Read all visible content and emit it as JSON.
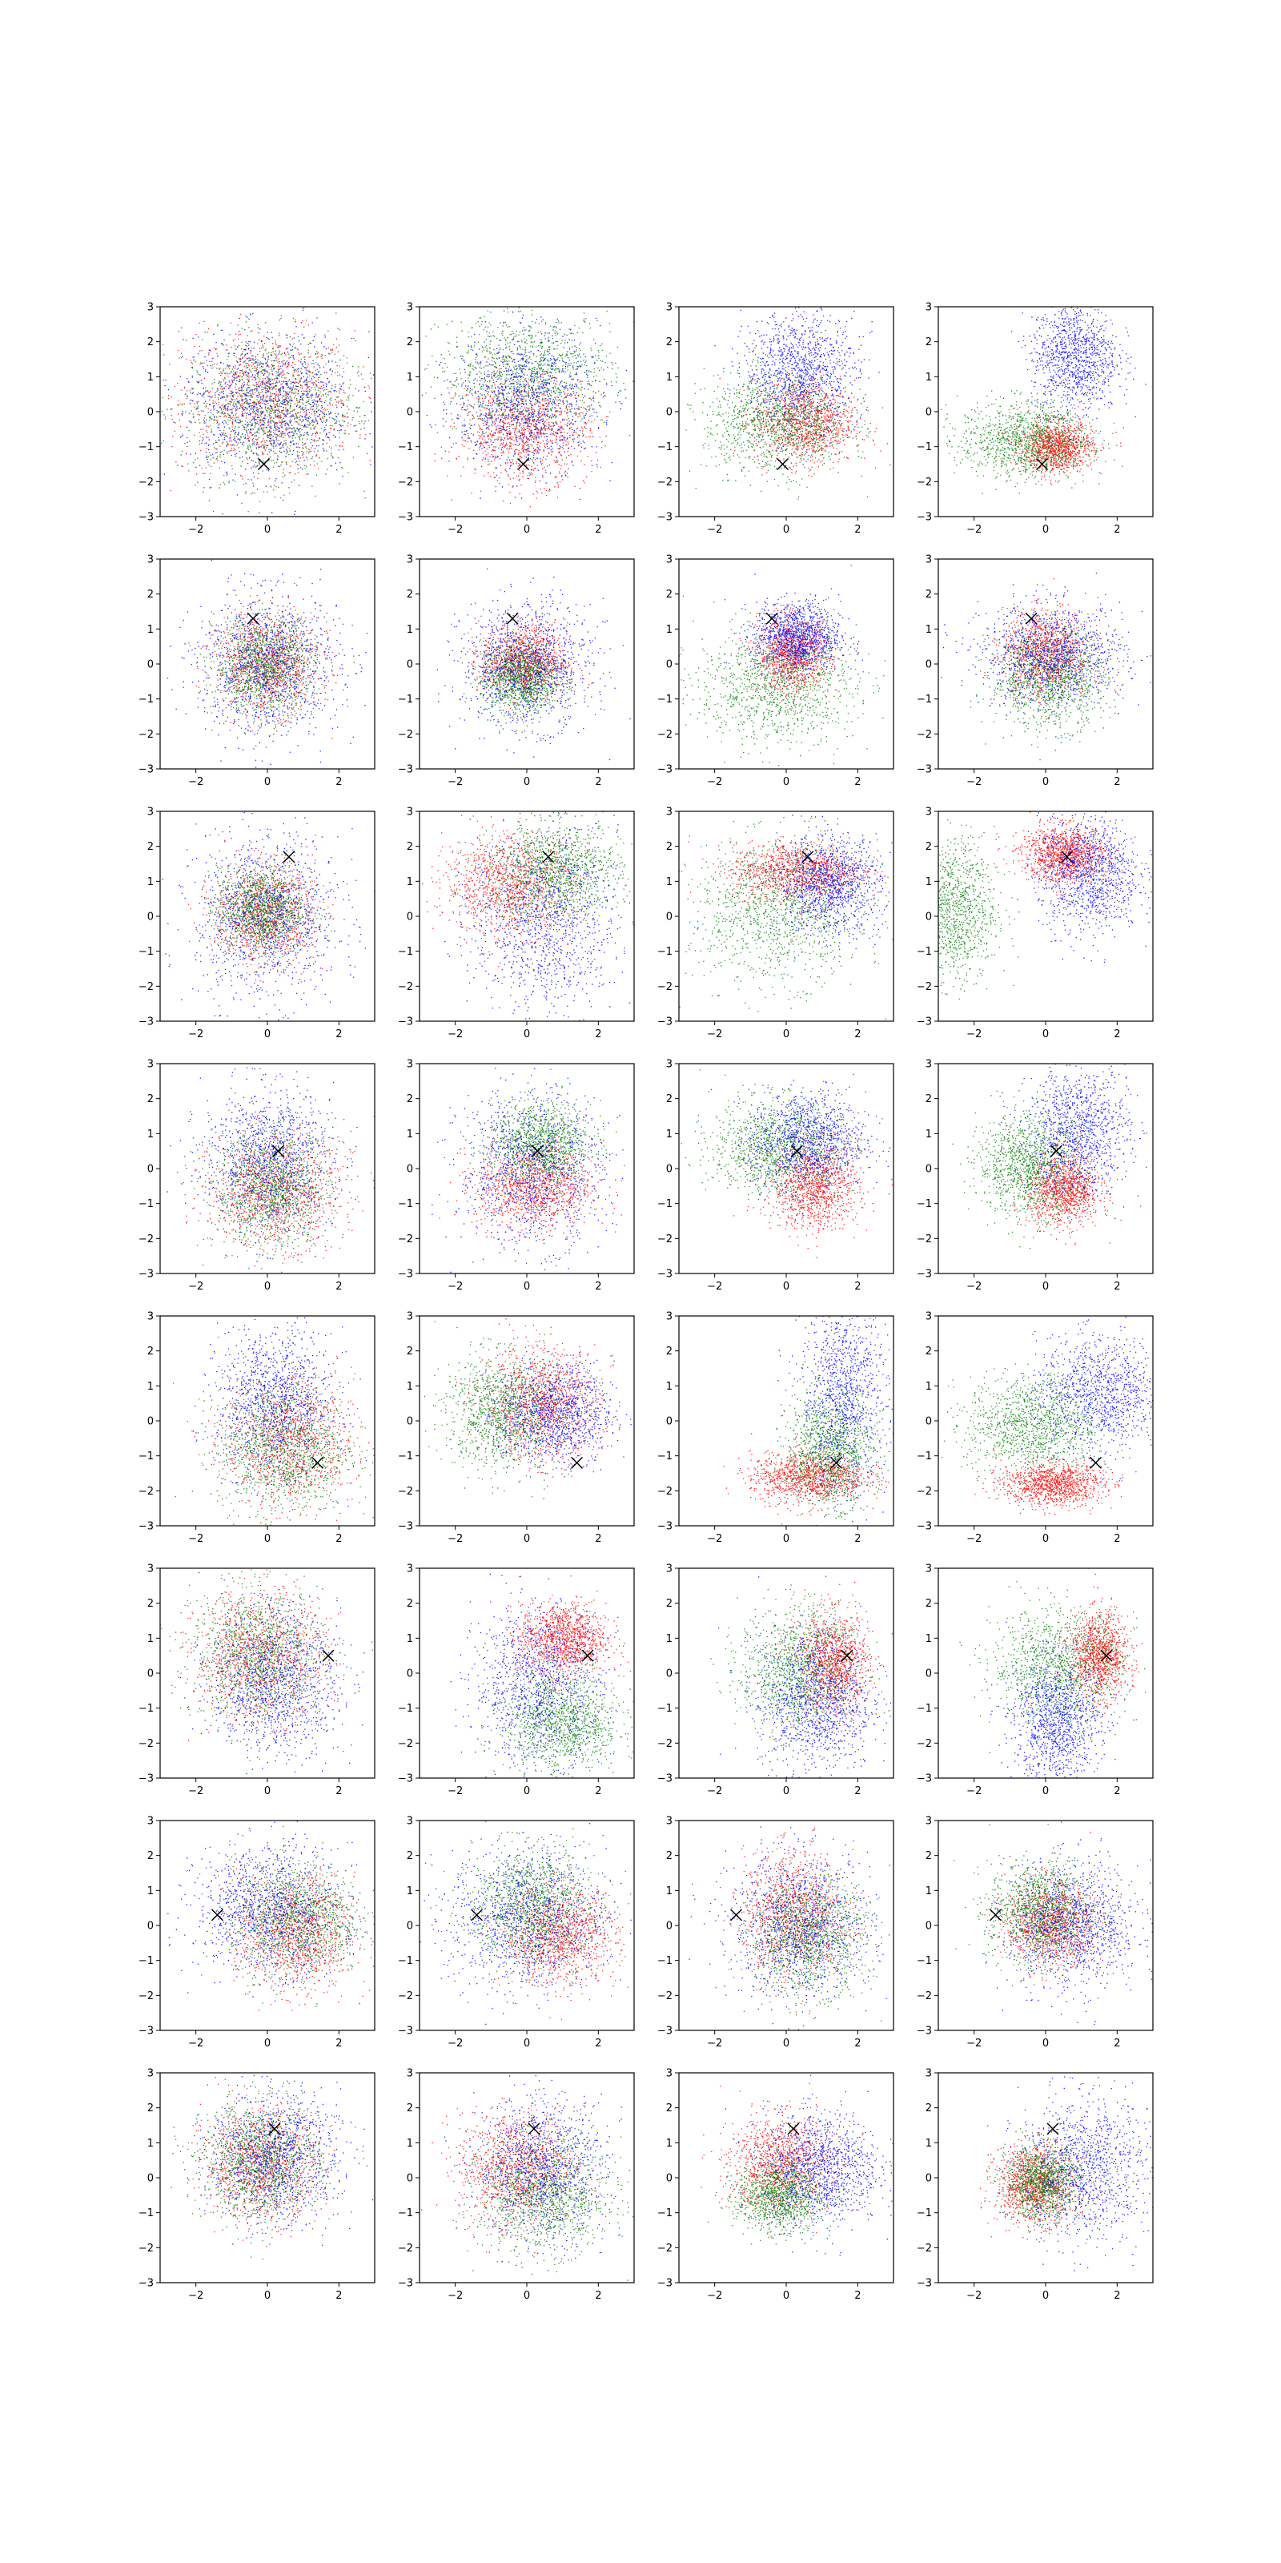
{
  "figure": {
    "rows": 8,
    "cols": 4,
    "background": "#ffffff"
  },
  "axes_common": {
    "xlim": [
      -3,
      3
    ],
    "ylim": [
      -3,
      3
    ],
    "xticks": [
      -2,
      0,
      2
    ],
    "yticks": [
      -3,
      -2,
      -1,
      0,
      1,
      2,
      3
    ],
    "xtick_labels": [
      "−2",
      "0",
      "2"
    ],
    "ytick_labels": [
      "−3",
      "−2",
      "−1",
      "0",
      "1",
      "2",
      "3"
    ],
    "grid": false,
    "legend": "none",
    "marker_color": "#000000",
    "marker_symbol": "x"
  },
  "series_colors": {
    "red": "#ff0000",
    "green": "#008000",
    "blue": "#0000ff"
  },
  "chart_data": {
    "type": "scatter",
    "title": "",
    "xlabel": "",
    "ylabel": "",
    "rows": [
      {
        "marker": [
          -0.1,
          -1.5
        ],
        "panels": [
          [
            [
              0.0,
              0.3,
              1.2,
              1.0
            ],
            [
              0.0,
              0.1,
              1.2,
              1.0
            ],
            [
              0.0,
              0.2,
              1.2,
              1.0
            ]
          ],
          [
            [
              -0.1,
              -0.5,
              0.9,
              0.75
            ],
            [
              0.0,
              1.1,
              1.2,
              0.85
            ],
            [
              0.0,
              0.3,
              1.0,
              1.0
            ]
          ],
          [
            [
              0.5,
              -0.3,
              0.7,
              0.6
            ],
            [
              -0.3,
              -0.3,
              1.0,
              0.7
            ],
            [
              0.4,
              1.2,
              0.8,
              0.8
            ]
          ],
          [
            [
              0.3,
              -1.0,
              0.5,
              0.35
            ],
            [
              -0.6,
              -0.8,
              0.9,
              0.55
            ],
            [
              0.8,
              1.6,
              0.6,
              0.8
            ]
          ]
        ]
      },
      {
        "marker": [
          -0.4,
          1.3
        ],
        "panels": [
          [
            [
              0.0,
              0.0,
              0.7,
              0.7
            ],
            [
              -0.1,
              0.0,
              0.7,
              0.7
            ],
            [
              0.0,
              0.0,
              1.0,
              1.0
            ]
          ],
          [
            [
              -0.1,
              0.1,
              0.6,
              0.5
            ],
            [
              -0.2,
              -0.4,
              0.55,
              0.5
            ],
            [
              0.0,
              0.0,
              0.9,
              0.9
            ]
          ],
          [
            [
              0.2,
              0.3,
              0.5,
              0.5
            ],
            [
              -0.3,
              -0.6,
              1.1,
              0.8
            ],
            [
              0.3,
              0.8,
              0.6,
              0.5
            ]
          ],
          [
            [
              0.0,
              0.3,
              0.6,
              0.6
            ],
            [
              0.1,
              -0.4,
              0.8,
              0.7
            ],
            [
              0.2,
              0.3,
              1.0,
              0.7
            ]
          ]
        ]
      },
      {
        "marker": [
          0.6,
          1.7
        ],
        "panels": [
          [
            [
              -0.1,
              0.1,
              0.7,
              0.7
            ],
            [
              -0.2,
              0.2,
              0.6,
              0.6
            ],
            [
              0.0,
              0.0,
              1.0,
              1.2
            ]
          ],
          [
            [
              -0.5,
              0.9,
              0.9,
              0.7
            ],
            [
              0.8,
              1.3,
              0.9,
              0.7
            ],
            [
              0.5,
              -0.2,
              1.0,
              1.3
            ]
          ],
          [
            [
              0.3,
              1.3,
              0.9,
              0.4
            ],
            [
              -0.3,
              0.1,
              1.2,
              1.0
            ],
            [
              1.2,
              0.9,
              0.7,
              0.7
            ]
          ],
          [
            [
              0.5,
              1.8,
              0.6,
              0.4
            ],
            [
              -2.6,
              0.2,
              0.6,
              1.0
            ],
            [
              1.2,
              1.2,
              0.7,
              0.8
            ]
          ]
        ]
      },
      {
        "marker": [
          0.3,
          0.5
        ],
        "panels": [
          [
            [
              0.2,
              -0.6,
              0.9,
              0.8
            ],
            [
              0.1,
              -0.6,
              0.8,
              0.8
            ],
            [
              0.0,
              0.3,
              0.9,
              1.0
            ]
          ],
          [
            [
              0.2,
              -0.5,
              0.8,
              0.6
            ],
            [
              0.4,
              0.7,
              0.7,
              0.6
            ],
            [
              0.1,
              0.0,
              1.0,
              1.1
            ]
          ],
          [
            [
              0.8,
              -0.5,
              0.6,
              0.6
            ],
            [
              -0.3,
              0.6,
              0.9,
              0.7
            ],
            [
              0.6,
              0.8,
              0.8,
              0.7
            ]
          ],
          [
            [
              0.5,
              -0.6,
              0.5,
              0.5
            ],
            [
              -0.5,
              0.1,
              0.7,
              0.7
            ],
            [
              0.9,
              1.1,
              0.7,
              0.9
            ]
          ]
        ]
      },
      {
        "marker": [
          1.4,
          -1.2
        ],
        "panels": [
          [
            [
              0.6,
              -0.6,
              0.9,
              0.9
            ],
            [
              0.4,
              -0.8,
              0.9,
              0.9
            ],
            [
              0.2,
              0.6,
              0.8,
              1.0
            ]
          ],
          [
            [
              0.4,
              0.5,
              0.8,
              0.8
            ],
            [
              -0.7,
              0.3,
              0.8,
              0.8
            ],
            [
              0.8,
              0.2,
              0.8,
              0.7
            ]
          ],
          [
            [
              0.6,
              -1.6,
              0.8,
              0.35
            ],
            [
              1.2,
              -0.8,
              0.6,
              0.8
            ],
            [
              1.6,
              0.8,
              0.6,
              1.4
            ]
          ],
          [
            [
              0.2,
              -1.8,
              0.7,
              0.3
            ],
            [
              -0.4,
              -0.1,
              0.9,
              0.7
            ],
            [
              1.5,
              0.8,
              0.9,
              0.8
            ]
          ]
        ]
      },
      {
        "marker": [
          1.7,
          0.5
        ],
        "panels": [
          [
            [
              -0.2,
              0.5,
              0.9,
              0.9
            ],
            [
              -0.3,
              0.6,
              0.9,
              0.9
            ],
            [
              0.2,
              -0.3,
              0.9,
              1.0
            ]
          ],
          [
            [
              1.0,
              1.0,
              0.6,
              0.5
            ],
            [
              1.0,
              -1.4,
              0.8,
              0.7
            ],
            [
              0.3,
              -0.3,
              0.9,
              1.1
            ]
          ],
          [
            [
              1.3,
              0.3,
              0.5,
              0.7
            ],
            [
              0.3,
              0.1,
              0.8,
              0.9
            ],
            [
              0.8,
              -0.8,
              0.8,
              1.0
            ]
          ],
          [
            [
              1.5,
              0.5,
              0.4,
              0.6
            ],
            [
              0.3,
              0.2,
              0.9,
              0.8
            ],
            [
              0.3,
              -1.4,
              0.6,
              0.9
            ]
          ]
        ]
      },
      {
        "marker": [
          -1.4,
          0.3
        ],
        "panels": [
          [
            [
              0.8,
              -0.2,
              0.8,
              0.8
            ],
            [
              0.8,
              0.2,
              0.9,
              0.8
            ],
            [
              0.0,
              0.5,
              1.0,
              0.9
            ]
          ],
          [
            [
              0.9,
              -0.3,
              0.8,
              0.7
            ],
            [
              0.1,
              0.6,
              0.8,
              0.8
            ],
            [
              0.0,
              0.2,
              1.1,
              1.0
            ]
          ],
          [
            [
              0.2,
              0.3,
              0.7,
              0.9
            ],
            [
              0.6,
              -0.3,
              0.8,
              0.8
            ],
            [
              0.4,
              0.0,
              1.0,
              1.0
            ]
          ],
          [
            [
              0.1,
              0.1,
              0.6,
              0.6
            ],
            [
              -0.2,
              0.4,
              0.7,
              0.7
            ],
            [
              0.8,
              0.0,
              0.9,
              0.9
            ]
          ]
        ]
      },
      {
        "marker": [
          0.2,
          1.4
        ],
        "panels": [
          [
            [
              -0.2,
              0.4,
              0.8,
              0.8
            ],
            [
              -0.2,
              0.5,
              0.8,
              0.8
            ],
            [
              0.2,
              0.6,
              0.9,
              0.9
            ]
          ],
          [
            [
              -0.3,
              0.3,
              0.8,
              0.8
            ],
            [
              0.5,
              -0.5,
              0.9,
              0.8
            ],
            [
              0.4,
              0.3,
              0.9,
              1.0
            ]
          ],
          [
            [
              -0.2,
              0.4,
              0.7,
              0.7
            ],
            [
              -0.2,
              -0.5,
              0.6,
              0.5
            ],
            [
              1.0,
              0.3,
              0.8,
              0.8
            ]
          ],
          [
            [
              -0.3,
              -0.2,
              0.55,
              0.55
            ],
            [
              -0.1,
              -0.1,
              0.5,
              0.5
            ],
            [
              1.1,
              0.3,
              0.9,
              1.0
            ]
          ]
        ]
      }
    ]
  }
}
